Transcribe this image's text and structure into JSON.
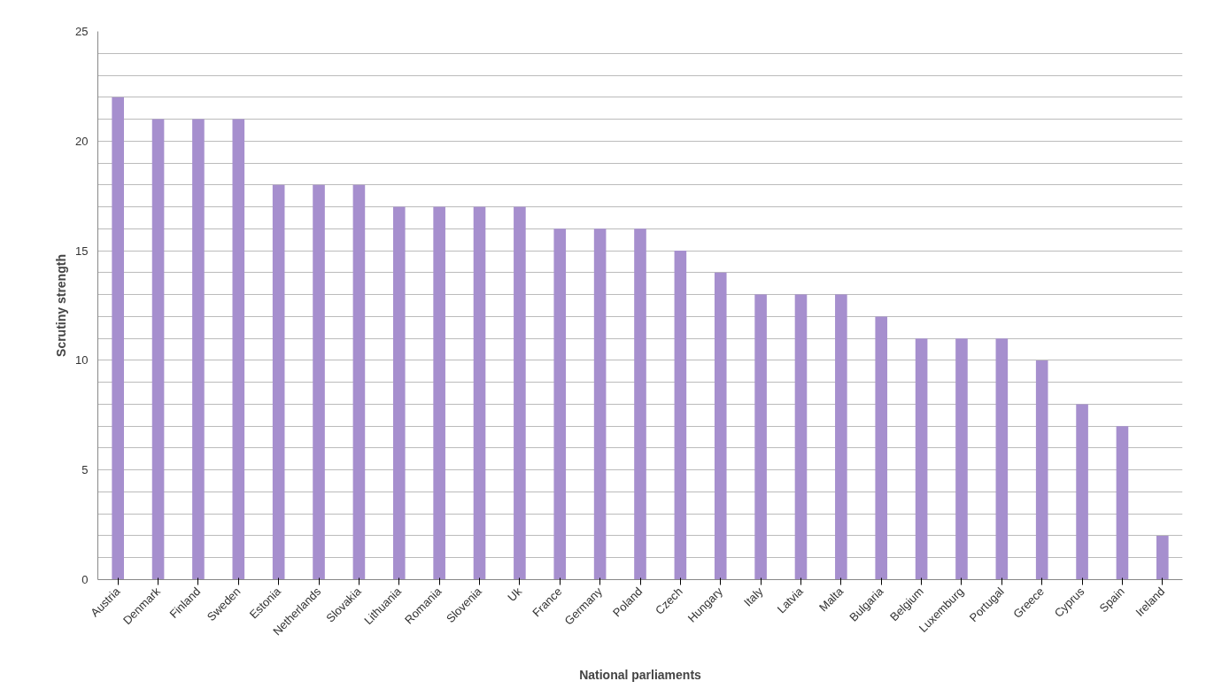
{
  "chart_data": {
    "type": "bar",
    "xlabel": "National parliaments",
    "ylabel": "Scrutiny strength",
    "categories": [
      "Austria",
      "Denmark",
      "Finland",
      "Sweden",
      "Estonia",
      "Netherlands",
      "Slovakia",
      "Lithuania",
      "Romania",
      "Slovenia",
      "Uk",
      "France",
      "Germany",
      "Poland",
      "Czech",
      "Hungary",
      "Italy",
      "Latvia",
      "Malta",
      "Bulgaria",
      "Belgium",
      "Luxemburg",
      "Portugal",
      "Greece",
      "Cyprus",
      "Spain",
      "Ireland"
    ],
    "values": [
      22,
      21,
      21,
      21,
      18,
      18,
      18,
      17,
      17,
      17,
      17,
      16,
      16,
      16,
      15,
      14,
      13,
      13,
      13,
      12,
      11,
      11,
      11,
      10,
      8,
      7,
      2
    ],
    "color": "#a68fce",
    "ylim": [
      0,
      25
    ],
    "yticks": [
      0,
      {
        "value": 1,
        "label": null
      },
      {
        "value": 2,
        "label": null
      },
      {
        "value": 3,
        "label": null
      },
      {
        "value": 4,
        "label": null
      },
      5,
      {
        "value": 6,
        "label": null
      },
      {
        "value": 7,
        "label": null
      },
      {
        "value": 8,
        "label": null
      },
      {
        "value": 9,
        "label": null
      },
      10,
      {
        "value": 11,
        "label": null
      },
      {
        "value": 12,
        "label": null
      },
      {
        "value": 13,
        "label": null
      },
      {
        "value": 14,
        "label": null
      },
      15,
      {
        "value": 16,
        "label": null
      },
      {
        "value": 17,
        "label": null
      },
      {
        "value": 18,
        "label": null
      },
      {
        "value": 19,
        "label": null
      },
      20,
      {
        "value": 21,
        "label": null
      },
      {
        "value": 22,
        "label": null
      },
      {
        "value": 23,
        "label": null
      },
      {
        "value": 24,
        "label": null
      },
      25
    ],
    "grid": "y"
  }
}
